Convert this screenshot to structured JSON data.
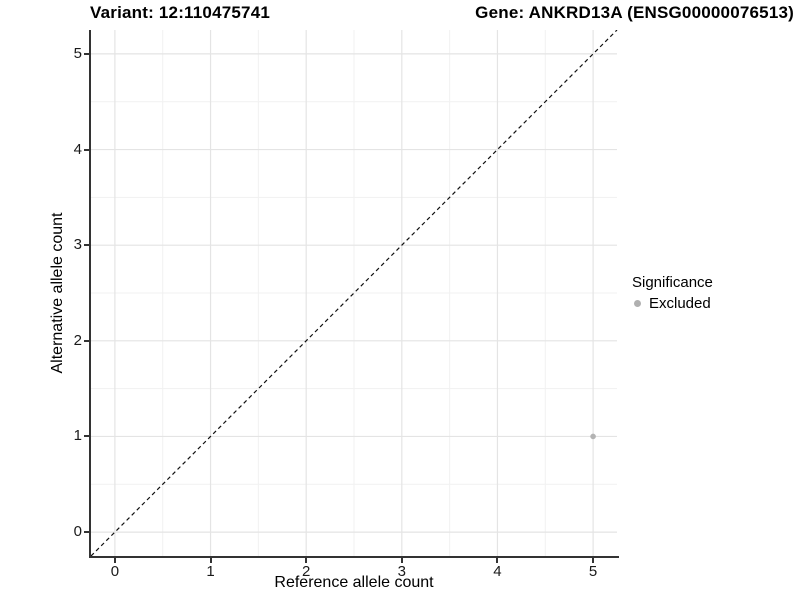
{
  "figure": {
    "background": "#ffffff"
  },
  "chart_data": {
    "type": "scatter",
    "title_left": "Variant: 12:110475741",
    "title_right": "Gene: ANKRD13A (ENSG00000076513)",
    "xlabel": "Reference allele count",
    "ylabel": "Alternative allele count",
    "xlim": [
      -0.25,
      5.25
    ],
    "ylim": [
      -0.25,
      5.25
    ],
    "xticks": [
      0,
      1,
      2,
      3,
      4,
      5
    ],
    "yticks": [
      0,
      1,
      2,
      3,
      4,
      5
    ],
    "x_minor_ticks": [
      0.5,
      1.5,
      2.5,
      3.5,
      4.5
    ],
    "y_minor_ticks": [
      0.5,
      1.5,
      2.5,
      3.5,
      4.5
    ],
    "grid": true,
    "identity_line": {
      "style": "dashed",
      "color": "#111111"
    },
    "points": [
      {
        "x": 5,
        "y": 1,
        "significance": "Excluded",
        "color": "#b3b3b3"
      }
    ],
    "legend": {
      "title": "Significance",
      "position": "right",
      "items": [
        {
          "label": "Excluded",
          "color": "#b0b0b0"
        }
      ]
    },
    "colors": {
      "grid_major": "#e4e4e4",
      "grid_minor": "#f1f1f1",
      "axis_line": "#333333",
      "point_default": "#b3b3b3"
    }
  }
}
